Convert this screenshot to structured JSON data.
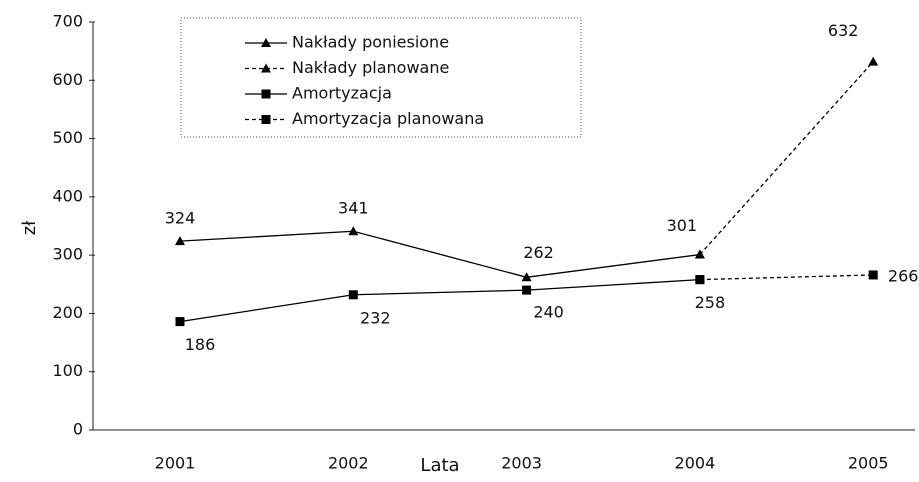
{
  "chart_data": {
    "type": "line",
    "xlabel": "Lata",
    "ylabel": "zł",
    "categories": [
      "2001",
      "2002",
      "2003",
      "2004",
      "2005"
    ],
    "ylim": [
      0,
      700
    ],
    "yticks": [
      0,
      100,
      200,
      300,
      400,
      500,
      600,
      700
    ],
    "grid": false,
    "legend": "top-left",
    "series": [
      {
        "name": "Nakłady poniesione",
        "color": "#000000",
        "marker": "triangle",
        "dashed": false,
        "values": [
          324,
          341,
          262,
          301,
          null
        ]
      },
      {
        "name": "Nakłady planowane",
        "color": "#000000",
        "marker": "triangle",
        "dashed": true,
        "values": [
          null,
          null,
          null,
          301,
          632
        ]
      },
      {
        "name": "Amortyzacja",
        "color": "#000000",
        "marker": "square",
        "dashed": false,
        "values": [
          186,
          232,
          240,
          258,
          null
        ]
      },
      {
        "name": "Amortyzacja planowana",
        "color": "#000000",
        "marker": "square",
        "dashed": true,
        "values": [
          null,
          null,
          null,
          258,
          266
        ]
      }
    ]
  }
}
